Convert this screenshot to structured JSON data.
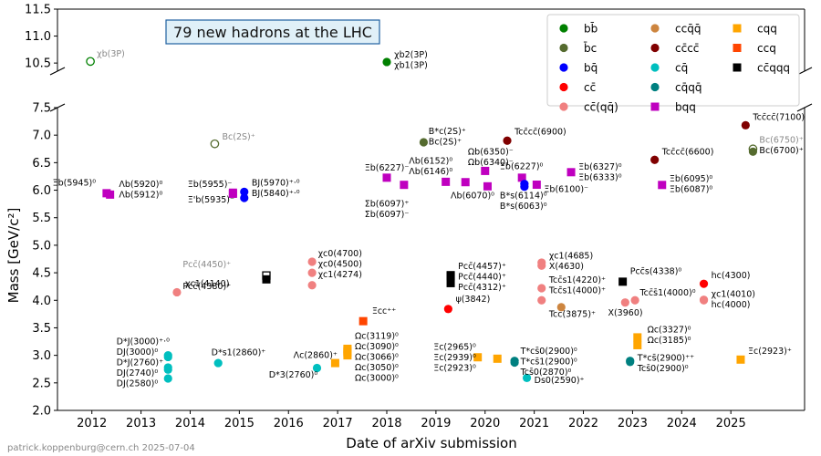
{
  "chart_data": {
    "type": "scatter",
    "title": "79 new hadrons at the LHC",
    "xlabel": "Date of arXiv submission",
    "ylabel": "Mass [GeV/c²]",
    "footer": "patrick.koppenburg@cern.ch 2025-07-04",
    "xlim": [
      2011.3,
      2026.5
    ],
    "ylim_lower": [
      2.0,
      7.5
    ],
    "ylim_upper": [
      10.35,
      11.5
    ],
    "xticks": [
      "2012",
      "2013",
      "2014",
      "2015",
      "2016",
      "2017",
      "2018",
      "2019",
      "2020",
      "2021",
      "2022",
      "2023",
      "2024",
      "2025"
    ],
    "yticks_lower": [
      "2.0",
      "2.5",
      "3.0",
      "3.5",
      "4.0",
      "4.5",
      "5.0",
      "5.5",
      "6.0",
      "6.5",
      "7.0",
      "7.5"
    ],
    "yticks_upper": [
      "10.5",
      "11.0",
      "11.5"
    ],
    "legend_position": "top-right",
    "legend": [
      {
        "label": "bb̄",
        "color": "#008000",
        "marker": "circle"
      },
      {
        "label": "b̄c",
        "color": "#556b2f",
        "marker": "circle"
      },
      {
        "label": "bq̄",
        "color": "#0000ff",
        "marker": "circle"
      },
      {
        "label": "cc̄",
        "color": "#ff0000",
        "marker": "circle"
      },
      {
        "label": "cc̄(qq̄)",
        "color": "#f08080",
        "marker": "circle"
      },
      {
        "label": "ccq̄q̄",
        "color": "#cd853f",
        "marker": "circle"
      },
      {
        "label": "cc̄cc̄",
        "color": "#800000",
        "marker": "circle"
      },
      {
        "label": "cq̄",
        "color": "#00bfbf",
        "marker": "circle"
      },
      {
        "label": "cq̄qq̄",
        "color": "#008080",
        "marker": "circle"
      },
      {
        "label": "bqq",
        "color": "#bf00bf",
        "marker": "square"
      },
      {
        "label": "cqq",
        "color": "#ffa500",
        "marker": "square"
      },
      {
        "label": "ccq",
        "color": "#ff4500",
        "marker": "square"
      },
      {
        "label": "cc̄qqq",
        "color": "#000000",
        "marker": "square"
      }
    ],
    "points": [
      {
        "x": 2011.97,
        "y": 10.53,
        "color": "#008000",
        "marker": "open",
        "labels": [
          "χb(3P)"
        ],
        "lx": 2012.1,
        "ly": 10.62,
        "grey": true
      },
      {
        "x": 2018.0,
        "y": 10.52,
        "color": "#008000",
        "marker": "circle",
        "labels": [
          "χb2(3P)",
          "χb1(3P)"
        ],
        "lx": 2018.15,
        "ly": 10.6
      },
      {
        "x": 2012.3,
        "y": 5.945,
        "color": "#bf00bf",
        "marker": "square",
        "labels": [
          "Ξb(5945)⁰"
        ],
        "lx": 2011.2,
        "ly": 6.08
      },
      {
        "x": 2012.37,
        "y": 5.92,
        "color": "#bf00bf",
        "marker": "square",
        "labels": [
          "Λb(5920)⁰",
          "Λb(5912)⁰"
        ],
        "lx": 2012.55,
        "ly": 6.06
      },
      {
        "x": 2013.55,
        "y": 3.0,
        "color": "#00bfbf",
        "marker": "circle",
        "labels": [
          "D*J(3000)⁺·⁰",
          "DJ(3000)⁰",
          "D*J(2760)⁺",
          "DJ(2740)⁰",
          "DJ(2580)⁰"
        ],
        "lx": 2012.5,
        "ly": 3.2
      },
      {
        "x": 2013.55,
        "y": 2.97,
        "color": "#00bfbf",
        "marker": "circle"
      },
      {
        "x": 2013.55,
        "y": 2.78,
        "color": "#00bfbf",
        "marker": "circle"
      },
      {
        "x": 2013.55,
        "y": 2.74,
        "color": "#00bfbf",
        "marker": "circle"
      },
      {
        "x": 2013.55,
        "y": 2.58,
        "color": "#00bfbf",
        "marker": "circle"
      },
      {
        "x": 2013.73,
        "y": 4.146,
        "color": "#f08080",
        "marker": "circle",
        "labels": [
          "χc1(4140)"
        ],
        "lx": 2013.9,
        "ly": 4.25
      },
      {
        "x": 2014.5,
        "y": 6.842,
        "color": "#556b2f",
        "marker": "open",
        "labels": [
          "Bc(2S)⁺"
        ],
        "lx": 2014.65,
        "ly": 6.92,
        "grey": true
      },
      {
        "x": 2014.57,
        "y": 2.86,
        "color": "#00bfbf",
        "marker": "circle",
        "labels": [
          "D*s1(2860)⁺"
        ],
        "lx": 2014.43,
        "ly": 3.0
      },
      {
        "x": 2014.87,
        "y": 5.955,
        "color": "#bf00bf",
        "marker": "square",
        "labels": [
          "Ξb(5955)⁻"
        ],
        "lx": 2013.95,
        "ly": 6.06
      },
      {
        "x": 2014.87,
        "y": 5.935,
        "color": "#bf00bf",
        "marker": "square",
        "labels": [
          "Ξ'b(5935)⁻"
        ],
        "lx": 2013.95,
        "ly": 5.78
      },
      {
        "x": 2015.1,
        "y": 5.97,
        "color": "#0000ff",
        "marker": "circle",
        "labels": [
          "BJ(5970)⁺·⁰",
          "BJ(5840)⁺·⁰"
        ],
        "lx": 2015.25,
        "ly": 6.08
      },
      {
        "x": 2015.1,
        "y": 5.86,
        "color": "#0000ff",
        "marker": "circle"
      },
      {
        "x": 2015.55,
        "y": 4.45,
        "color": "#000000",
        "marker": "open-square",
        "labels": [
          "Pcc̄(4450)⁺"
        ],
        "lx": 2013.85,
        "ly": 4.6,
        "grey": true
      },
      {
        "x": 2015.55,
        "y": 4.38,
        "color": "#000000",
        "marker": "square",
        "labels": [
          "Pcc̄(4380)⁺"
        ],
        "lx": 2013.85,
        "ly": 4.2
      },
      {
        "x": 2016.48,
        "y": 4.7,
        "color": "#f08080",
        "marker": "circle",
        "labels": [
          "χc0(4700)",
          "χc0(4500)",
          "χc1(4274)"
        ],
        "lx": 2016.6,
        "ly": 4.8
      },
      {
        "x": 2016.48,
        "y": 4.5,
        "color": "#f08080",
        "marker": "circle"
      },
      {
        "x": 2016.48,
        "y": 4.274,
        "color": "#f08080",
        "marker": "circle"
      },
      {
        "x": 2016.58,
        "y": 2.77,
        "color": "#00bfbf",
        "marker": "circle",
        "labels": [
          "D*3(2760)⁰"
        ],
        "lx": 2015.6,
        "ly": 2.6
      },
      {
        "x": 2016.95,
        "y": 2.86,
        "color": "#ffa500",
        "marker": "square",
        "labels": [
          "Λc(2860)⁺"
        ],
        "lx": 2016.1,
        "ly": 2.95
      },
      {
        "x": 2017.2,
        "y": 3.119,
        "color": "#ffa500",
        "marker": "square",
        "labels": [
          "Ωc(3119)⁰",
          "Ωc(3090)⁰",
          "Ωc(3066)⁰",
          "Ωc(3050)⁰",
          "Ωc(3000)⁰"
        ],
        "lx": 2017.35,
        "ly": 3.3
      },
      {
        "x": 2017.2,
        "y": 3.09,
        "color": "#ffa500",
        "marker": "square"
      },
      {
        "x": 2017.2,
        "y": 3.066,
        "color": "#ffa500",
        "marker": "square"
      },
      {
        "x": 2017.2,
        "y": 3.05,
        "color": "#ffa500",
        "marker": "square"
      },
      {
        "x": 2017.2,
        "y": 3.0,
        "color": "#ffa500",
        "marker": "square"
      },
      {
        "x": 2017.52,
        "y": 3.621,
        "color": "#ff4500",
        "marker": "square",
        "labels": [
          "Ξcc⁺⁺"
        ],
        "lx": 2017.7,
        "ly": 3.76
      },
      {
        "x": 2018.0,
        "y": 6.227,
        "color": "#bf00bf",
        "marker": "square",
        "labels": [
          "Ξb(6227)⁻"
        ],
        "lx": 2017.55,
        "ly": 6.36
      },
      {
        "x": 2018.35,
        "y": 6.097,
        "color": "#bf00bf",
        "marker": "square",
        "labels": [
          "Σb(6097)⁺",
          "Σb(6097)⁻"
        ],
        "lx": 2017.55,
        "ly": 5.7
      },
      {
        "x": 2018.75,
        "y": 6.871,
        "color": "#556b2f",
        "marker": "circle",
        "labels": [
          "B*c(2S)⁺",
          "Bc(2S)⁺"
        ],
        "lx": 2018.85,
        "ly": 7.02
      },
      {
        "x": 2019.3,
        "y": 4.457,
        "color": "#000000",
        "marker": "square",
        "labels": [
          "Pcc̄(4457)⁺",
          "Pcc̄(4440)⁺",
          "Pcc̄(4312)⁺"
        ],
        "lx": 2019.45,
        "ly": 4.57
      },
      {
        "x": 2019.3,
        "y": 4.44,
        "color": "#000000",
        "marker": "square"
      },
      {
        "x": 2019.3,
        "y": 4.312,
        "color": "#000000",
        "marker": "square"
      },
      {
        "x": 2019.25,
        "y": 3.842,
        "color": "#ff0000",
        "marker": "circle",
        "labels": [
          "ψ(3842)"
        ],
        "lx": 2019.4,
        "ly": 3.97
      },
      {
        "x": 2019.2,
        "y": 6.152,
        "color": "#bf00bf",
        "marker": "square",
        "labels": [
          "Λb(6152)⁰",
          "Λb(6146)⁰"
        ],
        "lx": 2018.45,
        "ly": 6.48
      },
      {
        "x": 2019.6,
        "y": 6.146,
        "color": "#bf00bf",
        "marker": "square"
      },
      {
        "x": 2019.85,
        "y": 2.965,
        "color": "#ffa500",
        "marker": "square",
        "labels": [
          "Ξc(2965)⁰",
          "Ξc(2939)⁰",
          "Ξc(2923)⁰"
        ],
        "lx": 2018.95,
        "ly": 3.1
      },
      {
        "x": 2020.0,
        "y": 6.35,
        "color": "#bf00bf",
        "marker": "square",
        "labels": [
          "Ωb(6350)⁻",
          "Ωb(6340)⁻"
        ],
        "lx": 2019.65,
        "ly": 6.65
      },
      {
        "x": 2020.05,
        "y": 6.07,
        "color": "#bf00bf",
        "marker": "square",
        "labels": [
          "Λb(6070)⁰"
        ],
        "lx": 2019.3,
        "ly": 5.85
      },
      {
        "x": 2020.25,
        "y": 2.939,
        "color": "#ffa500",
        "marker": "square"
      },
      {
        "x": 2020.45,
        "y": 6.9,
        "color": "#800000",
        "marker": "circle",
        "labels": [
          "Tcc̄cc̄(6900)"
        ],
        "lx": 2020.6,
        "ly": 7.01
      },
      {
        "x": 2020.6,
        "y": 2.9,
        "color": "#008080",
        "marker": "circle",
        "labels": [
          "T*cs̄0(2900)⁰",
          "T*cs̄1(2900)⁰",
          "Tcs̄0(2870)⁰"
        ],
        "lx": 2020.72,
        "ly": 3.03
      },
      {
        "x": 2020.6,
        "y": 2.87,
        "color": "#008080",
        "marker": "circle"
      },
      {
        "x": 2020.75,
        "y": 6.227,
        "color": "#bf00bf",
        "marker": "square",
        "labels": [
          "Ξb(6227)⁰"
        ],
        "lx": 2020.3,
        "ly": 6.38
      },
      {
        "x": 2020.8,
        "y": 6.114,
        "color": "#0000ff",
        "marker": "circle",
        "labels": [
          "B*s(6114)⁰",
          "B*s(6063)⁰"
        ],
        "lx": 2020.3,
        "ly": 5.85
      },
      {
        "x": 2020.8,
        "y": 6.063,
        "color": "#0000ff",
        "marker": "circle"
      },
      {
        "x": 2021.05,
        "y": 6.1,
        "color": "#bf00bf",
        "marker": "square",
        "labels": [
          "Ξb(6100)⁻"
        ],
        "lx": 2021.2,
        "ly": 5.97
      },
      {
        "x": 2020.85,
        "y": 2.59,
        "color": "#00bfbf",
        "marker": "circle",
        "labels": [
          "Ds0(2590)⁺"
        ],
        "lx": 2021.0,
        "ly": 2.5
      },
      {
        "x": 2021.15,
        "y": 4.685,
        "color": "#f08080",
        "marker": "circle",
        "labels": [
          "χc1(4685)",
          "X(4630)"
        ],
        "lx": 2021.3,
        "ly": 4.76
      },
      {
        "x": 2021.15,
        "y": 4.63,
        "color": "#f08080",
        "marker": "circle"
      },
      {
        "x": 2021.15,
        "y": 4.22,
        "color": "#f08080",
        "marker": "circle",
        "labels": [
          "Tcc̄s1(4220)⁺",
          "Tcc̄s1(4000)⁺"
        ],
        "lx": 2021.3,
        "ly": 4.32
      },
      {
        "x": 2021.15,
        "y": 4.0,
        "color": "#f08080",
        "marker": "circle"
      },
      {
        "x": 2021.55,
        "y": 3.875,
        "color": "#cd853f",
        "marker": "circle",
        "labels": [
          "Tcc(3875)⁺"
        ],
        "lx": 2021.3,
        "ly": 3.7
      },
      {
        "x": 2021.75,
        "y": 6.327,
        "color": "#bf00bf",
        "marker": "square",
        "labels": [
          "Ξb(6327)⁰",
          "Ξb(6333)⁰"
        ],
        "lx": 2021.9,
        "ly": 6.37
      },
      {
        "x": 2022.8,
        "y": 4.338,
        "color": "#000000",
        "marker": "square",
        "labels": [
          "Pcc̄s(4338)⁰"
        ],
        "lx": 2022.95,
        "ly": 4.48
      },
      {
        "x": 2022.85,
        "y": 3.96,
        "color": "#f08080",
        "marker": "circle",
        "labels": [
          "X(3960)"
        ],
        "lx": 2022.5,
        "ly": 3.72
      },
      {
        "x": 2023.05,
        "y": 4.0,
        "color": "#f08080",
        "marker": "circle",
        "labels": [
          "Tcc̄s̄1(4000)⁰"
        ],
        "lx": 2023.15,
        "ly": 4.09
      },
      {
        "x": 2022.95,
        "y": 2.9,
        "color": "#008080",
        "marker": "circle",
        "labels": [
          "T*cs̄(2900)⁺⁺",
          "Tcs̄0(2900)⁰"
        ],
        "lx": 2023.1,
        "ly": 2.9
      },
      {
        "x": 2022.95,
        "y": 2.88,
        "color": "#008080",
        "marker": "circle"
      },
      {
        "x": 2023.1,
        "y": 3.327,
        "color": "#ffa500",
        "marker": "square",
        "labels": [
          "Ωc(3327)⁰",
          "Ωc(3185)⁰"
        ],
        "lx": 2023.3,
        "ly": 3.42
      },
      {
        "x": 2023.1,
        "y": 3.185,
        "color": "#ffa500",
        "marker": "square"
      },
      {
        "x": 2023.45,
        "y": 6.552,
        "color": "#800000",
        "marker": "circle",
        "labels": [
          "Tcc̄cc̄(6600)"
        ],
        "lx": 2023.6,
        "ly": 6.65
      },
      {
        "x": 2023.6,
        "y": 6.095,
        "color": "#bf00bf",
        "marker": "square",
        "labels": [
          "Ξb(6095)⁰",
          "Ξb(6087)⁰"
        ],
        "lx": 2023.75,
        "ly": 6.16
      },
      {
        "x": 2024.45,
        "y": 4.3,
        "color": "#ff0000",
        "marker": "circle",
        "labels": [
          "hc(4300)"
        ],
        "lx": 2024.6,
        "ly": 4.4
      },
      {
        "x": 2024.45,
        "y": 4.01,
        "color": "#f08080",
        "marker": "circle",
        "labels": [
          "χc1(4010)",
          "hc(4000)"
        ],
        "lx": 2024.6,
        "ly": 4.06
      },
      {
        "x": 2024.45,
        "y": 4.0,
        "color": "#f08080",
        "marker": "circle"
      },
      {
        "x": 2025.2,
        "y": 2.923,
        "color": "#ffa500",
        "marker": "square",
        "labels": [
          "Ξc(2923)⁺"
        ],
        "lx": 2025.35,
        "ly": 3.03
      },
      {
        "x": 2025.3,
        "y": 7.18,
        "color": "#800000",
        "marker": "circle",
        "labels": [
          "Tcc̄cc̄(7100)"
        ],
        "lx": 2025.45,
        "ly": 7.28
      },
      {
        "x": 2025.45,
        "y": 6.75,
        "color": "#556b2f",
        "marker": "open",
        "labels": [
          "Bc(6750)⁺"
        ],
        "lx": 2025.58,
        "ly": 6.86,
        "grey": true
      },
      {
        "x": 2025.45,
        "y": 6.7,
        "color": "#556b2f",
        "marker": "circle",
        "labels": [
          "Bc(6700)⁺"
        ],
        "lx": 2025.58,
        "ly": 6.67
      }
    ]
  }
}
